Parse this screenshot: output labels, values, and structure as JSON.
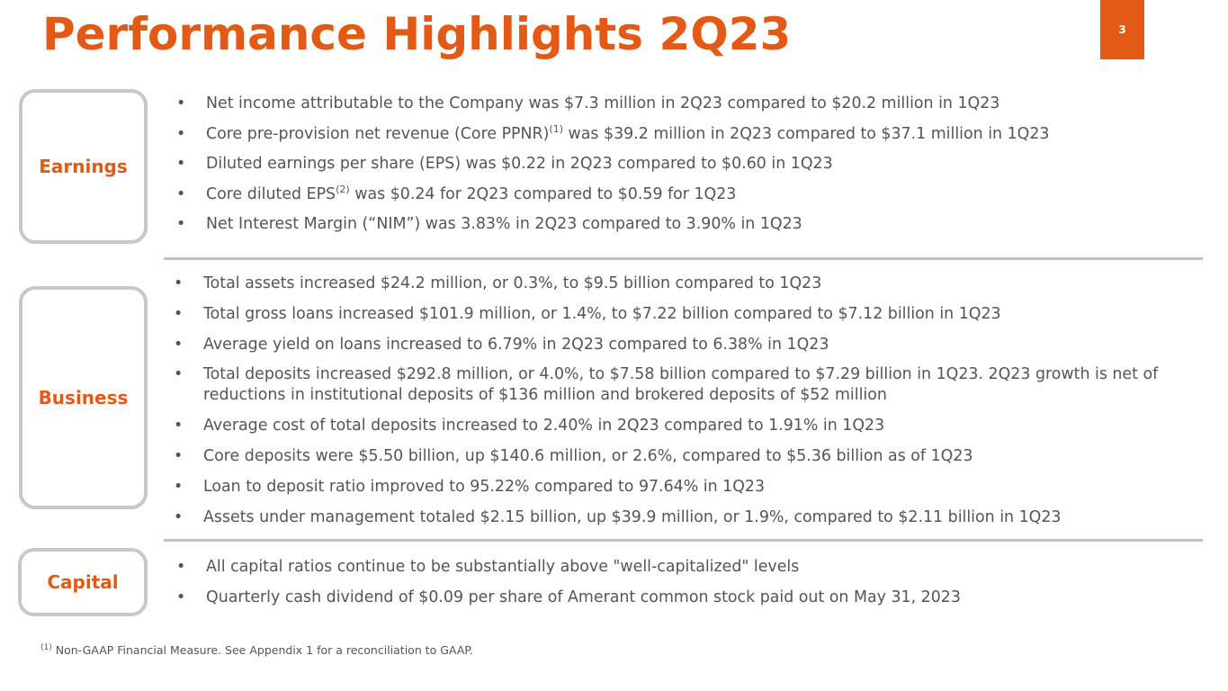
{
  "slide": {
    "title": "Performance Highlights 2Q23",
    "page_number": "3"
  },
  "sections": {
    "earnings": {
      "label": "Earnings",
      "bullets": [
        {
          "text": "Net income attributable to the Company was $7.3 million in 2Q23 compared to $20.2 million in 1Q23"
        },
        {
          "pre": "Core pre-provision net revenue (Core PPNR)",
          "sup": "(1)",
          "post": " was $39.2 million in 2Q23 compared to $37.1 million in 1Q23"
        },
        {
          "text": "Diluted earnings per share (EPS) was $0.22 in 2Q23 compared to $0.60 in 1Q23"
        },
        {
          "pre": "Core diluted EPS",
          "sup": "(2)",
          "post": " was $0.24 for 2Q23 compared to $0.59 for 1Q23"
        },
        {
          "text": "Net Interest Margin (“NIM”) was 3.83% in 2Q23 compared to 3.90% in 1Q23"
        }
      ]
    },
    "business": {
      "label": "Business",
      "bullets": [
        "Total assets increased $24.2 million, or 0.3%, to $9.5 billion compared to 1Q23",
        "Total gross loans increased $101.9 million, or 1.4%, to $7.22 billion compared to $7.12 billion in 1Q23",
        "Average yield on loans increased to 6.79% in 2Q23 compared to 6.38% in 1Q23",
        "Total deposits increased $292.8 million, or 4.0%, to $7.58 billion compared to $7.29 billion in 1Q23. 2Q23 growth is net of reductions in institutional deposits of $136  million and brokered deposits of $52  million",
        "Average cost of total deposits increased to 2.40% in 2Q23 compared to 1.91% in 1Q23",
        "Core deposits were $5.50 billion, up $140.6 million, or 2.6%, compared to $5.36 billion as of 1Q23",
        "Loan to deposit ratio improved to 95.22% compared to 97.64% in 1Q23",
        "Assets under management totaled $2.15 billion, up $39.9 million, or 1.9%, compared to $2.11 billion in 1Q23"
      ]
    },
    "capital": {
      "label": "Capital",
      "bullets": [
        "All capital ratios continue to be substantially above \"well-capitalized\" levels",
        "Quarterly cash dividend of $0.09 per share of Amerant common stock paid out on May 31, 2023"
      ]
    }
  },
  "footnote": {
    "marker": "(1)",
    "text": " Non-GAAP Financial Measure. See Appendix 1 for a reconciliation to GAAP."
  },
  "colors": {
    "accent": "#e35a16",
    "text": "#555555",
    "border": "#c8c8c8"
  }
}
